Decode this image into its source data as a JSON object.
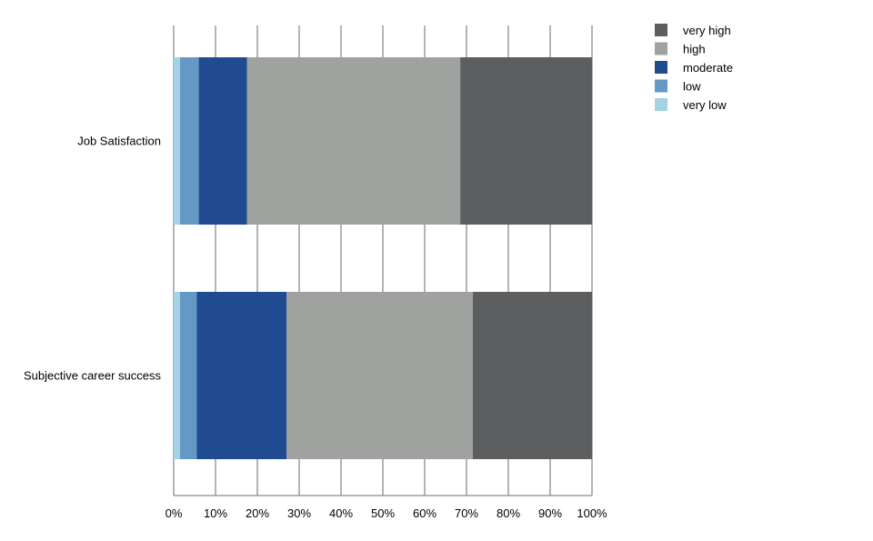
{
  "chart_data": {
    "type": "bar",
    "orientation": "horizontal",
    "stacked": true,
    "normalized": true,
    "categories": [
      "Job Satisfaction",
      "Subjective career success"
    ],
    "series": [
      {
        "name": "very low",
        "color": "#a6d2e6",
        "values": [
          1.5,
          1.5
        ]
      },
      {
        "name": "low",
        "color": "#6499c6",
        "values": [
          4.5,
          4.0
        ]
      },
      {
        "name": "moderate",
        "color": "#204b91",
        "values": [
          11.5,
          21.5
        ]
      },
      {
        "name": "high",
        "color": "#a0a29f",
        "values": [
          51.0,
          44.5
        ]
      },
      {
        "name": "very high",
        "color": "#5d5e60",
        "values": [
          31.5,
          28.5
        ]
      }
    ],
    "legend_order": [
      "very high",
      "high",
      "moderate",
      "low",
      "very low"
    ],
    "xlim": [
      0,
      100
    ],
    "xticks": [
      0,
      10,
      20,
      30,
      40,
      50,
      60,
      70,
      80,
      90,
      100
    ],
    "xtick_labels": [
      "0%",
      "10%",
      "20%",
      "30%",
      "40%",
      "50%",
      "60%",
      "70%",
      "80%",
      "90%",
      "100%"
    ],
    "grid": "vertical",
    "legend_position": "top-right",
    "title": "",
    "xlabel": "",
    "ylabel": ""
  }
}
